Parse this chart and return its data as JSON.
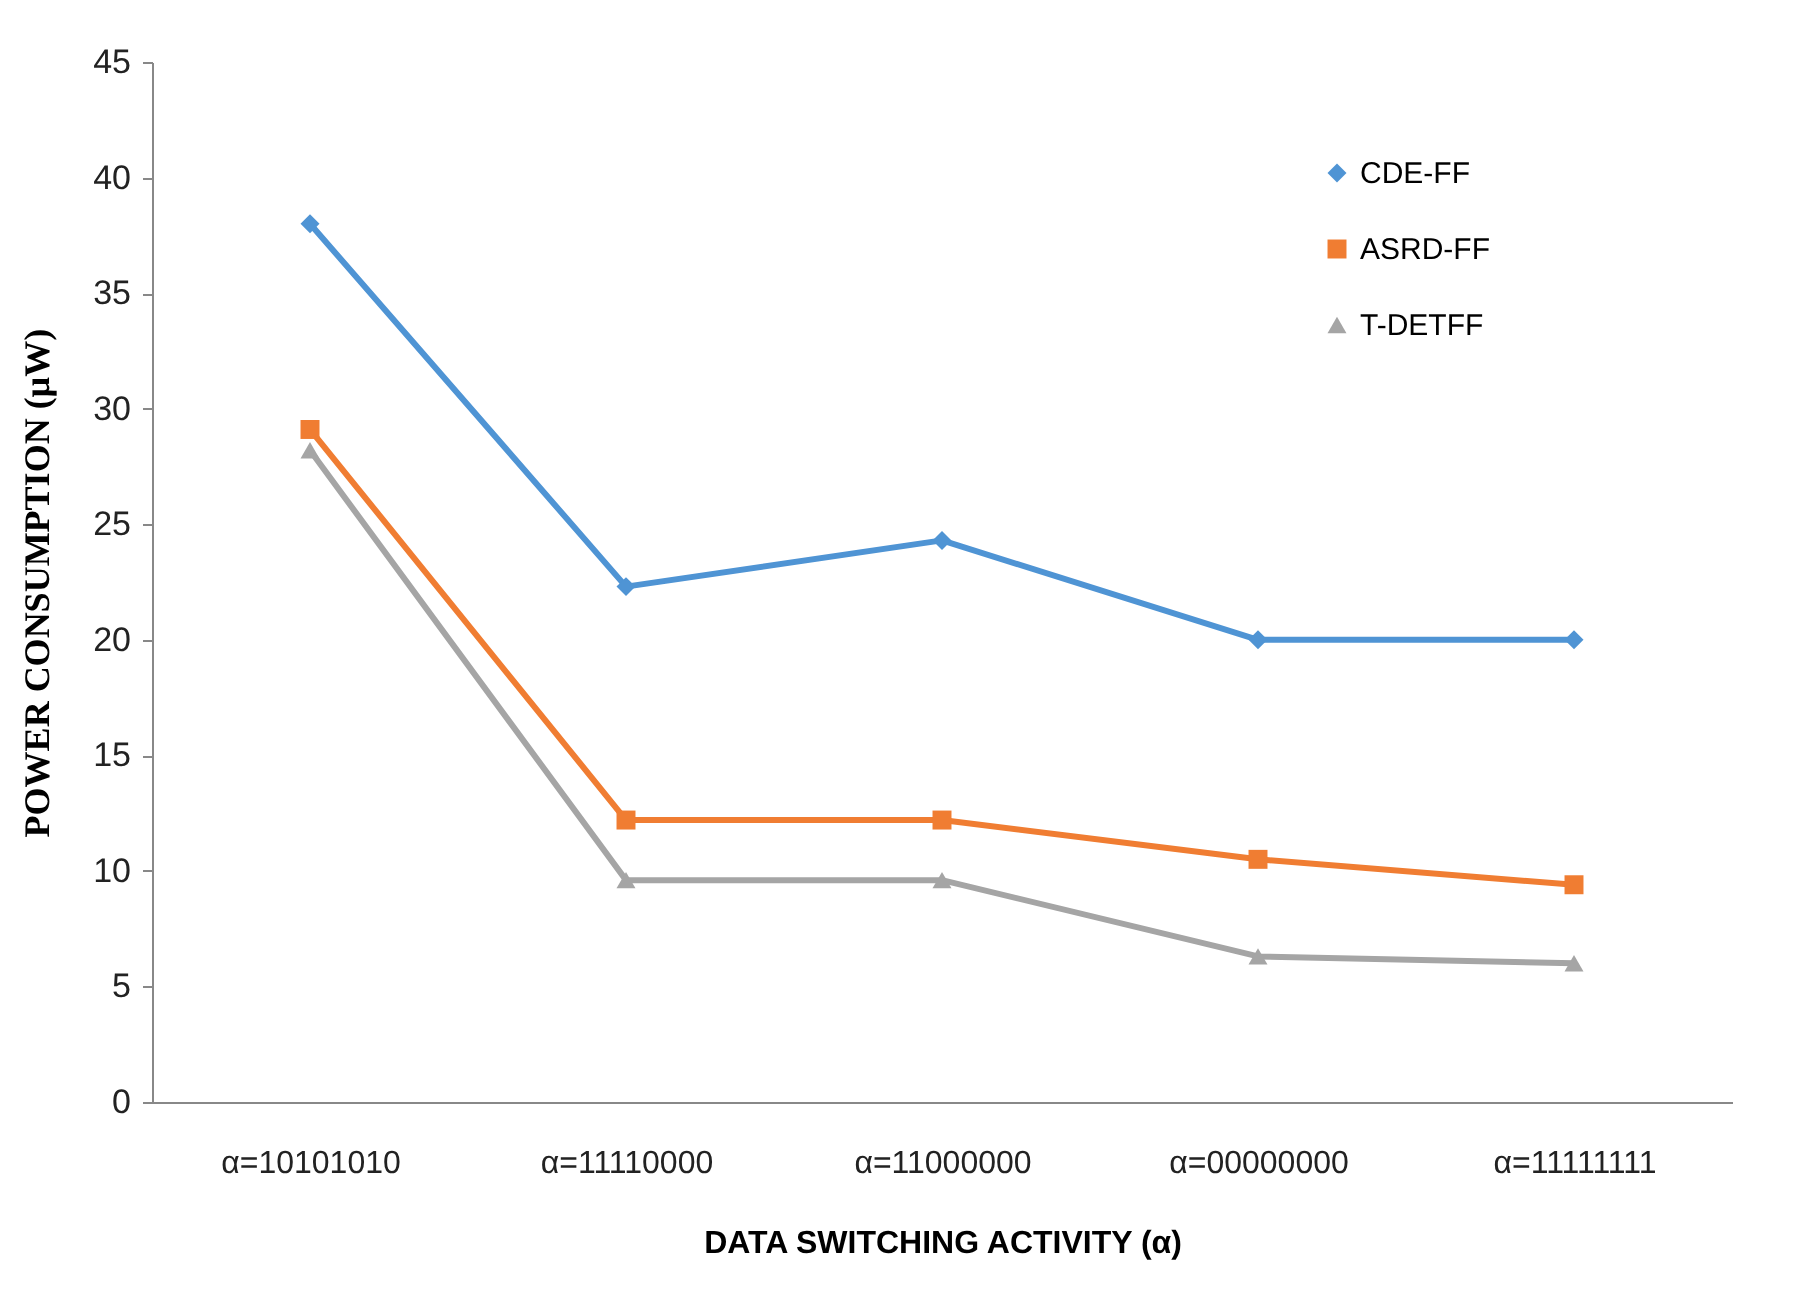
{
  "chart_data": {
    "type": "line",
    "xlabel": "DATA SWITCHING ACTIVITY (α)",
    "ylabel": "POWER CONSUMPTION (µW)",
    "categories": [
      "α=10101010",
      "α=11110000",
      "α=11000000",
      "α=00000000",
      "α=11111111"
    ],
    "series": [
      {
        "name": "CDE-FF",
        "color": "#4f94d4",
        "marker": "diamond",
        "values": [
          38.0,
          22.3,
          24.3,
          20.0,
          20.0
        ]
      },
      {
        "name": "ASRD-FF",
        "color": "#f07d32",
        "marker": "square",
        "values": [
          29.1,
          12.2,
          12.2,
          10.5,
          9.4
        ]
      },
      {
        "name": "T-DETFF",
        "color": "#a5a5a5",
        "marker": "triangle",
        "values": [
          28.2,
          9.6,
          9.6,
          6.3,
          6.0
        ]
      }
    ],
    "ylim": [
      0,
      45
    ],
    "yticks": [
      0,
      5,
      10,
      15,
      20,
      25,
      30,
      35,
      40,
      45
    ],
    "grid": false,
    "legend": "top right"
  }
}
